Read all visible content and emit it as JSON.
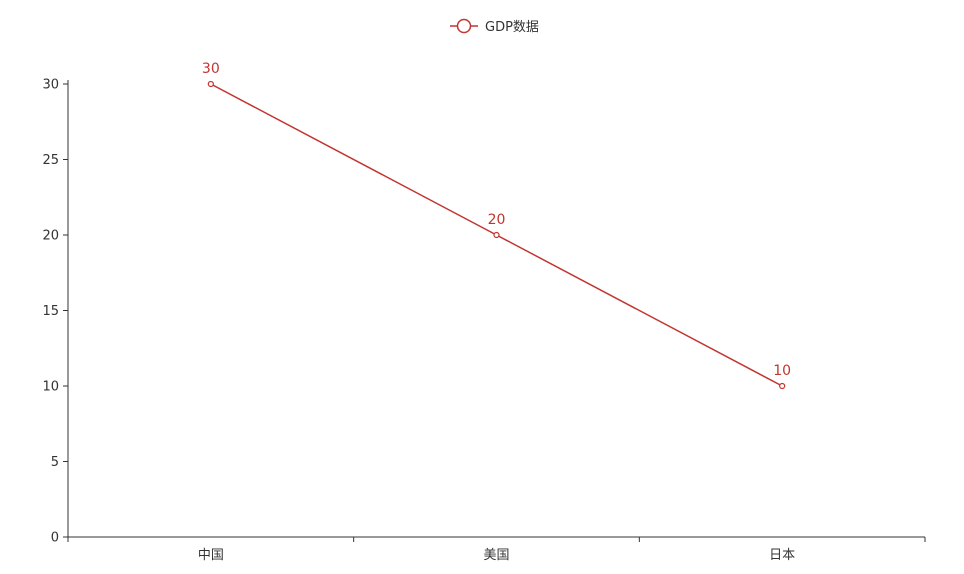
{
  "colors": {
    "series": "#c23531",
    "axis": "#333333"
  },
  "chart_data": {
    "type": "line",
    "title": "",
    "xlabel": "",
    "ylabel": "",
    "categories": [
      "中国",
      "美国",
      "日本"
    ],
    "series": [
      {
        "name": "GDP数据",
        "values": [
          30,
          20,
          10
        ]
      }
    ],
    "ylim": [
      0,
      30
    ],
    "yticks": [
      0,
      5,
      10,
      15,
      20,
      25,
      30
    ],
    "grid": false,
    "legend": "top-center",
    "data_labels": true,
    "markers": "hollow-circle"
  }
}
